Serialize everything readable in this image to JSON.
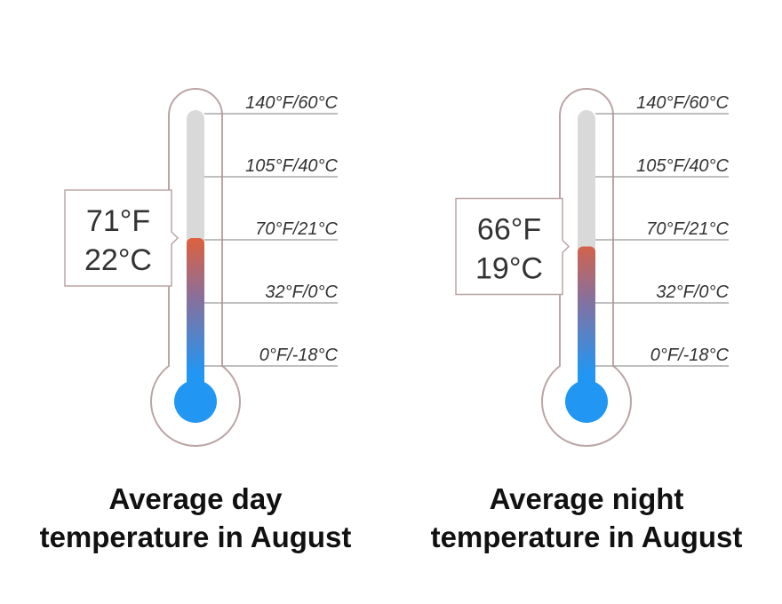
{
  "thermometers": [
    {
      "title": [
        "Average day",
        "temperature in August"
      ],
      "value": 71,
      "value_label": "71°F",
      "celsius_label": "22°C",
      "scale": [
        {
          "value": 140,
          "label": "140°F/60°C"
        },
        {
          "value": 105,
          "label": "105°F/40°C"
        },
        {
          "value": 70,
          "label": "70°F/21°C"
        },
        {
          "value": 32,
          "label": "32°F/0°C"
        },
        {
          "value": 0,
          "label": "0°F/-18°C"
        }
      ]
    },
    {
      "title": [
        "Average night",
        "temperature in August"
      ],
      "value": 66,
      "value_label": "66°F",
      "celsius_label": "19°C",
      "scale": [
        {
          "value": 140,
          "label": "140°F/60°C"
        },
        {
          "value": 105,
          "label": "105°F/40°C"
        },
        {
          "value": 70,
          "label": "70°F/21°C"
        },
        {
          "value": 32,
          "label": "32°F/0°C"
        },
        {
          "value": 0,
          "label": "0°F/-18°C"
        }
      ]
    }
  ]
}
